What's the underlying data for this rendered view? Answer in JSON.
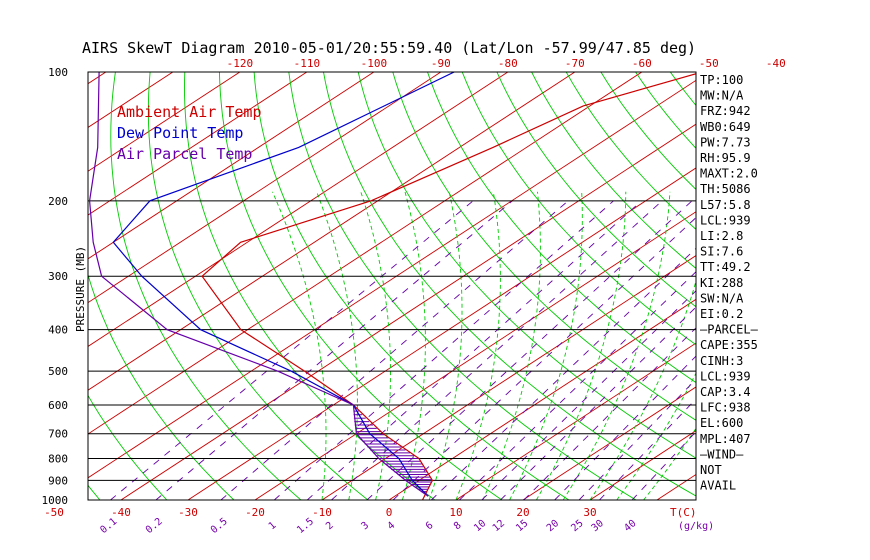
{
  "chart_data": {
    "type": "line",
    "title": "AIRS SkewT Diagram 2010-05-01/20:55:59.40 (Lat/Lon -57.99/47.85 deg)",
    "ylabel": "PRESSURE (MB)",
    "y_scale": "log",
    "ylim": [
      1000,
      100
    ],
    "pressure_ticks": [
      100,
      200,
      300,
      400,
      500,
      600,
      700,
      800,
      900,
      1000
    ],
    "temp_ticks_bottom": [
      "-50",
      "-40",
      "-30",
      "-20",
      "-10",
      "0",
      "10",
      "20",
      "30"
    ],
    "temp_ticks_top": [
      "-120",
      "-110",
      "-100",
      "-90",
      "-80",
      "-70",
      "-60",
      "-50",
      "-40"
    ],
    "temp_axis_label": "T(C)",
    "mixing_ratio_ticks": [
      "0.1",
      "0.2",
      "0.5",
      "1",
      "1.5",
      "2",
      "3",
      "4",
      "6",
      "8",
      "10",
      "12",
      "15",
      "20",
      "25",
      "30",
      "40"
    ],
    "mixing_ratio_label": "(g/kg)",
    "legend": [
      {
        "label": "Ambient Air Temp",
        "color": "#cc0000"
      },
      {
        "label": "Dew Point Temp",
        "color": "#0000cc"
      },
      {
        "label": "Air Parcel Temp",
        "color": "#6600aa"
      }
    ],
    "series": [
      {
        "name": "Ambient Air Temp",
        "color": "#cc0000",
        "points": [
          [
            100,
            -51
          ],
          [
            120,
            -61
          ],
          [
            150,
            -65
          ],
          [
            200,
            -71
          ],
          [
            250,
            -81
          ],
          [
            300,
            -79
          ],
          [
            400,
            -61
          ],
          [
            500,
            -42
          ],
          [
            600,
            -27
          ],
          [
            700,
            -16
          ],
          [
            800,
            -5
          ],
          [
            900,
            2
          ],
          [
            1000,
            5
          ]
        ]
      },
      {
        "name": "Dew Point Temp",
        "color": "#0000cc",
        "points": [
          [
            100,
            -88
          ],
          [
            150,
            -94
          ],
          [
            200,
            -104
          ],
          [
            250,
            -100
          ],
          [
            300,
            -88
          ],
          [
            400,
            -67
          ],
          [
            500,
            -44
          ],
          [
            600,
            -27
          ],
          [
            700,
            -18
          ],
          [
            800,
            -8
          ],
          [
            900,
            -1
          ],
          [
            980,
            5
          ]
        ]
      },
      {
        "name": "Air Parcel Temp",
        "color": "#6600aa",
        "points": [
          [
            100,
            -141
          ],
          [
            150,
            -124
          ],
          [
            200,
            -113
          ],
          [
            250,
            -103
          ],
          [
            300,
            -94
          ],
          [
            400,
            -72
          ],
          [
            500,
            -46
          ],
          [
            600,
            -27
          ],
          [
            700,
            -20
          ],
          [
            800,
            -11
          ],
          [
            900,
            -2
          ],
          [
            980,
            5
          ]
        ]
      }
    ],
    "side_panel": [
      "TP:100",
      "MW:N/A",
      "FRZ:942",
      "WB0:649",
      "PW:7.73",
      "RH:95.9",
      "MAXT:2.0",
      "TH:5086",
      "L57:5.8",
      "LCL:939",
      "LI:2.8",
      "SI:7.6",
      "TT:49.2",
      "KI:288",
      "SW:N/A",
      "EI:0.2",
      "–PARCEL–",
      "CAPE:355",
      "CINH:3",
      "LCL:939",
      "CAP:3.4",
      "LFC:938",
      "EL:600",
      "MPL:407",
      "–WIND–",
      "NOT",
      "AVAIL"
    ],
    "colors": {
      "isotherm": "#cc0000",
      "dry_adiabat": "#00cc00",
      "moist_adiabat": "#00cc00",
      "mixing_ratio": "#6600aa",
      "isobar": "#000000",
      "cape_hatch": "#6600aa"
    }
  }
}
